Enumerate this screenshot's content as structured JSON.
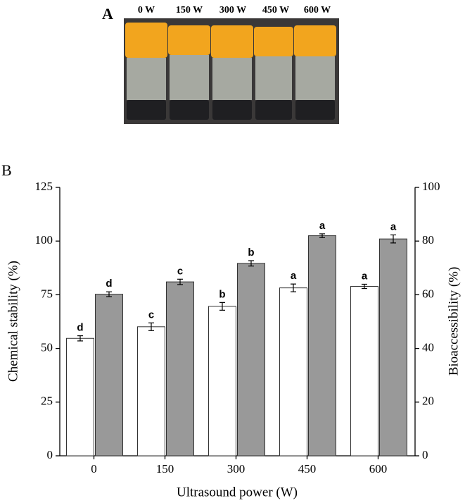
{
  "panel_a": {
    "label": "A",
    "power_labels": [
      "0 W",
      "150 W",
      "300 W",
      "450 W",
      "600 W"
    ]
  },
  "chart_data": {
    "type": "bar",
    "panel_label": "B",
    "x_label": "Ultrasound power (W)",
    "y_label": "Chemical stability (%)",
    "y2_label": "Bioaccessibility (%)",
    "categories": [
      "0",
      "150",
      "300",
      "450",
      "600"
    ],
    "ylim": [
      0,
      125
    ],
    "yticks": [
      0,
      25,
      50,
      75,
      100,
      125
    ],
    "y2lim": [
      0,
      100
    ],
    "y2ticks": [
      0,
      20,
      40,
      60,
      80,
      100
    ],
    "series": [
      {
        "color": "#ffffff",
        "values": [
          54.7,
          60.1,
          69.6,
          78.2,
          78.9
        ],
        "errors": [
          1.2,
          1.8,
          1.8,
          1.8,
          1.0
        ],
        "labels": [
          "d",
          "c",
          "b",
          "a",
          "a"
        ]
      },
      {
        "color": "#999999",
        "axis": "y2",
        "values": [
          60.2,
          64.8,
          71.7,
          82.0,
          80.8
        ],
        "errors": [
          0.9,
          1.0,
          1.0,
          0.7,
          1.5
        ],
        "labels": [
          "d",
          "c",
          "b",
          "a",
          "a"
        ]
      }
    ]
  }
}
